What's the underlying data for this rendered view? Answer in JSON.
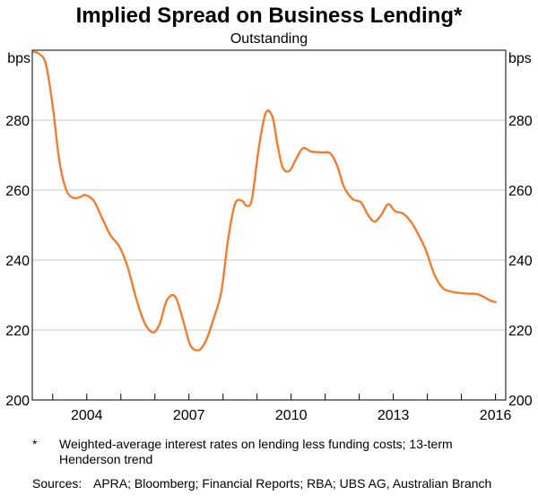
{
  "chart_data": {
    "type": "line",
    "title": "Implied Spread on Business Lending*",
    "subtitle": "Outstanding",
    "ylabel_left": "bps",
    "ylabel_right": "bps",
    "ylim": [
      200,
      300
    ],
    "yticks": [
      200,
      220,
      240,
      260,
      280
    ],
    "xlim": [
      2002.4,
      2016.3
    ],
    "xticks": [
      2004,
      2007,
      2010,
      2013,
      2016
    ],
    "xtick_labels": [
      "2004",
      "2007",
      "2010",
      "2013",
      "2016"
    ],
    "grid": true,
    "series": [
      {
        "color": "#f07d32",
        "x": [
          2002.45,
          2002.6,
          2002.8,
          2003.0,
          2003.2,
          2003.4,
          2003.6,
          2003.8,
          2003.95,
          2004.2,
          2004.45,
          2004.7,
          2004.95,
          2005.2,
          2005.45,
          2005.7,
          2005.95,
          2006.15,
          2006.35,
          2006.6,
          2006.85,
          2007.05,
          2007.3,
          2007.5,
          2007.7,
          2007.95,
          2008.15,
          2008.35,
          2008.55,
          2008.7,
          2008.85,
          2009.05,
          2009.25,
          2009.45,
          2009.6,
          2009.75,
          2009.95,
          2010.15,
          2010.35,
          2010.6,
          2010.9,
          2011.15,
          2011.35,
          2011.55,
          2011.8,
          2012.05,
          2012.25,
          2012.45,
          2012.65,
          2012.85,
          2013.05,
          2013.3,
          2013.55,
          2013.75,
          2013.95,
          2014.2,
          2014.45,
          2014.7,
          2014.95,
          2015.2,
          2015.45,
          2015.65,
          2015.85,
          2016.0
        ],
        "y": [
          299.5,
          299,
          296,
          284,
          268,
          260,
          257.8,
          258,
          258.6,
          257,
          252,
          247,
          244,
          238,
          229,
          222,
          219.3,
          222,
          228.5,
          229.5,
          222,
          215.5,
          214.3,
          217,
          222.5,
          231,
          246,
          256,
          257,
          255.5,
          257.5,
          272,
          282,
          281,
          273,
          266.5,
          265.5,
          269,
          272,
          271,
          270.8,
          270.5,
          267,
          261,
          257.5,
          256.5,
          253,
          251,
          253,
          256,
          254,
          253.2,
          250.5,
          247,
          243,
          236,
          232,
          231,
          230.6,
          230.4,
          230.3,
          229.5,
          228.4,
          228
        ]
      }
    ]
  },
  "footnote": {
    "mark": "*",
    "text": "Weighted-average interest rates on lending less funding costs; 13-term Henderson trend"
  },
  "sources": {
    "label": "Sources:",
    "text": "APRA; Bloomberg; Financial Reports; RBA; UBS AG, Australian Branch"
  }
}
